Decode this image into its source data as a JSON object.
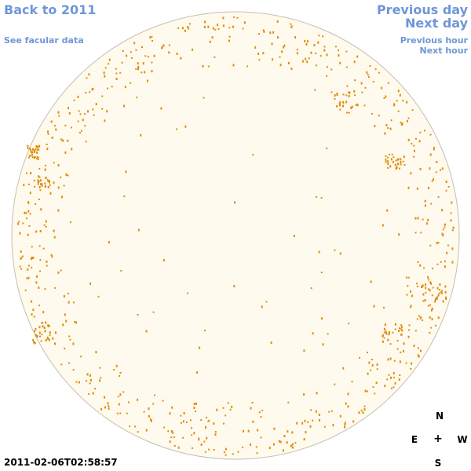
{
  "links": {
    "back": "Back to 2011",
    "facular": "See facular data",
    "previous_day": "Previous day",
    "next_day": "Next day",
    "previous_hour": "Previous hour",
    "next_hour": "Next hour"
  },
  "compass": {
    "north": "N",
    "east": "E",
    "center": "+",
    "west": "W",
    "south": "S"
  },
  "timestamp": "2011-02-06T02:58:57",
  "colors": {
    "link": "#6f96d8",
    "disk_fill": "#fffaee",
    "disk_edge": "#c6bfae",
    "feature": "#e08c0a"
  }
}
